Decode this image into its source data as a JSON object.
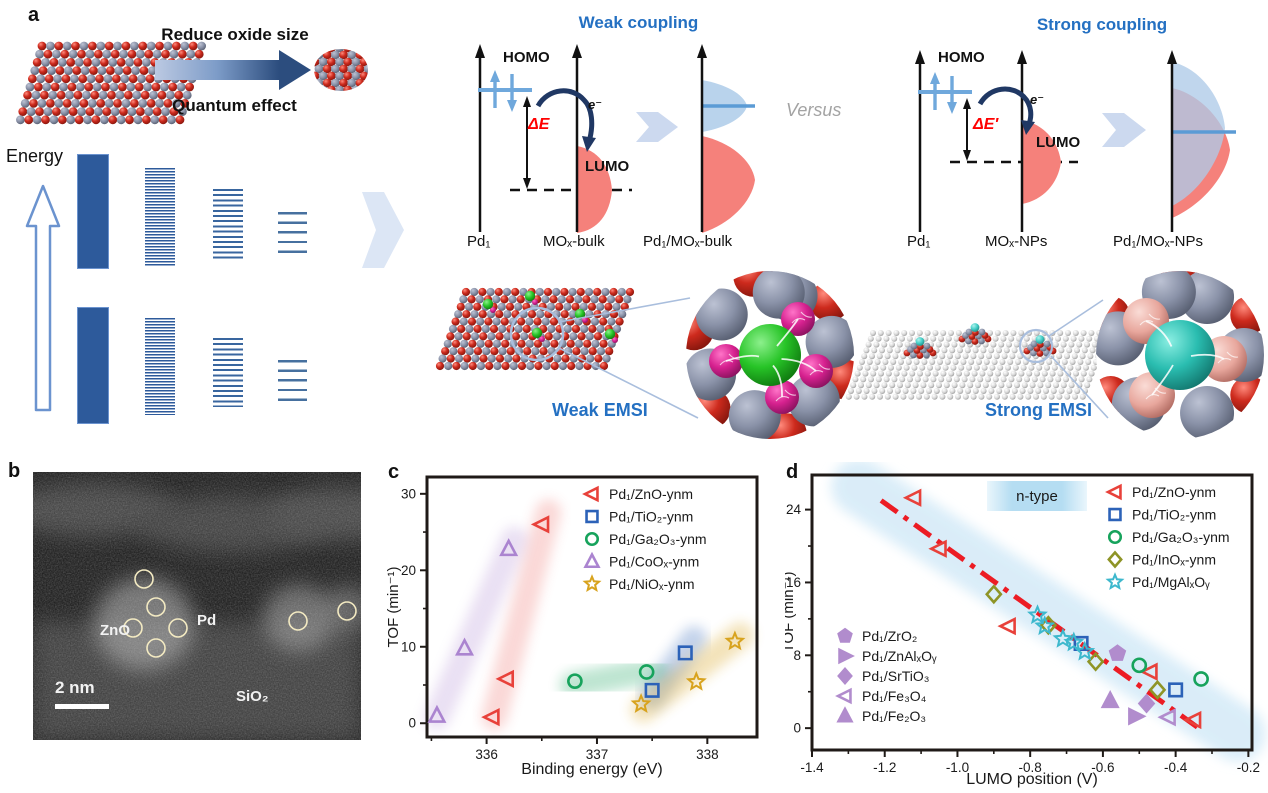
{
  "figure": {
    "panel_labels": {
      "a": "a",
      "b": "b",
      "c": "c",
      "d": "d"
    }
  },
  "panel_a": {
    "reduce_oxide_label": "Reduce oxide size",
    "quantum_effect_label": "Quantum effect",
    "energy_axis_label": "Energy",
    "versus_label": "Versus",
    "weak": {
      "title": "Weak coupling",
      "homo_label": "HOMO",
      "lumo_label": "LUMO",
      "delta_e_label": "ΔE",
      "electron_label": "e⁻",
      "axis1_label": "Pd₁",
      "axis2_label": "MOₓ-bulk",
      "axis3_label": "Pd₁/MOₓ-bulk",
      "emsi_label": "Weak EMSI"
    },
    "strong": {
      "title": "Strong coupling",
      "homo_label": "HOMO",
      "lumo_label": "LUMO",
      "delta_e_label": "ΔE′",
      "electron_label": "e⁻",
      "axis1_label": "Pd₁",
      "axis2_label": "MOₓ-NPs",
      "axis3_label": "Pd₁/MOₓ-NPs",
      "emsi_label": "Strong EMSI"
    },
    "colors": {
      "accent_blue": "#2470c2",
      "delta_e_red": "#ff0000",
      "homo_level_blue": "#6fa8dc",
      "lumo_peak_red": "#f5817b",
      "homo_peak_blue": "#aecbe8",
      "electron_arrow_navy": "#203864",
      "energy_bar_blue": "#2d5a9b",
      "block_arrow_blue": "#d9e3f4",
      "versus_gray": "#a3a3a3"
    }
  },
  "panel_b": {
    "zno_label": "ZnO",
    "pd_label": "Pd",
    "sio2_label": "SiO₂",
    "scale_bar_label": "2 nm",
    "marker_circle_color": "#f3eac2"
  },
  "chart_data": [
    {
      "id": "c",
      "type": "scatter",
      "xlabel": "Binding energy (eV)",
      "ylabel": "TOF (min⁻¹)",
      "xlim": [
        335.46,
        338.45
      ],
      "ylim": [
        -1.8,
        32.2
      ],
      "xticks": {
        "values": [
          336,
          337,
          338
        ],
        "labels": [
          "336",
          "337",
          "338"
        ]
      },
      "xminor": [
        335.5,
        336.5,
        337.5
      ],
      "yticks": {
        "values": [
          0,
          10,
          20,
          30
        ],
        "labels": [
          "0",
          "10",
          "20",
          "30"
        ]
      },
      "yminor": [
        5,
        15,
        25
      ],
      "grid": false,
      "legend_position": "top-right",
      "series": [
        {
          "name": "Pd₁/ZnO-ynm",
          "marker": "triangle-left",
          "color": "#e8413a",
          "band": [
            [
              336.07,
              0.8
            ],
            [
              336.56,
              27.6
            ]
          ],
          "band_opacity": 0.2,
          "points": [
            [
              336.05,
              0.8
            ],
            [
              336.18,
              5.8
            ],
            [
              336.5,
              26.0
            ]
          ]
        },
        {
          "name": "Pd₁/TiO₂-ynm",
          "marker": "square",
          "color": "#2c62b8",
          "band": [
            [
              337.5,
              3.6
            ],
            [
              337.88,
              11.0
            ]
          ],
          "band_opacity": 0.28,
          "points": [
            [
              337.5,
              4.3
            ],
            [
              337.8,
              9.2
            ]
          ]
        },
        {
          "name": "Pd₁/Ga₂O₃-ynm",
          "marker": "circle",
          "color": "#17a35c",
          "band": [
            [
              336.78,
              5.0
            ],
            [
              337.52,
              7.0
            ]
          ],
          "band_opacity": 0.28,
          "points": [
            [
              336.8,
              5.5
            ],
            [
              337.45,
              6.7
            ]
          ]
        },
        {
          "name": "Pd₁/CoOₓ-ynm",
          "marker": "triangle-up",
          "color": "#ab84d0",
          "band": [
            [
              335.55,
              0.8
            ],
            [
              336.25,
              24.0
            ]
          ],
          "band_opacity": 0.25,
          "points": [
            [
              335.55,
              1.0
            ],
            [
              335.8,
              9.8
            ],
            [
              336.2,
              22.8
            ]
          ]
        },
        {
          "name": "Pd₁/NiOₓ-ynm",
          "marker": "star",
          "color": "#d8a31e",
          "band": [
            [
              337.42,
              1.8
            ],
            [
              338.3,
              11.5
            ]
          ],
          "band_opacity": 0.3,
          "points": [
            [
              337.4,
              2.5
            ],
            [
              337.9,
              5.4
            ],
            [
              338.25,
              10.7
            ]
          ]
        }
      ]
    },
    {
      "id": "d",
      "type": "scatter",
      "xlabel": "LUMO position (V)",
      "ylabel": "TOF (min⁻¹)",
      "xlim": [
        -1.4,
        -0.19
      ],
      "ylim": [
        -2.4,
        27.8
      ],
      "xticks": {
        "values": [
          -1.4,
          -1.2,
          -1.0,
          -0.8,
          -0.6,
          -0.4,
          -0.2
        ],
        "labels": [
          "-1.4",
          "-1.2",
          "-1.0",
          "-0.8",
          "-0.6",
          "-0.4",
          "-0.2"
        ]
      },
      "xminor": [
        -1.3,
        -1.1,
        -0.9,
        -0.7,
        -0.5,
        -0.3
      ],
      "yticks": {
        "values": [
          0,
          8,
          16,
          24
        ],
        "labels": [
          "0",
          "8",
          "16",
          "24"
        ]
      },
      "yminor": [
        4,
        12,
        20
      ],
      "grid": false,
      "annotation": {
        "label": "n-type"
      },
      "band": {
        "from": [
          -1.27,
          26.5
        ],
        "to": [
          -0.23,
          -0.6
        ],
        "color": "#d6ebf8"
      },
      "trend": {
        "from": [
          -1.21,
          25.0
        ],
        "to": [
          -0.34,
          0.1
        ],
        "color": "#ec1c24",
        "style": "dash-dot"
      },
      "series": [
        {
          "name": "Pd₁/ZnO-ynm",
          "marker": "triangle-left",
          "color": "#e8413a",
          "legend_group": 1,
          "points": [
            [
              -1.12,
              25.3
            ],
            [
              -1.05,
              19.7
            ],
            [
              -0.86,
              11.2
            ],
            [
              -0.47,
              6.2
            ],
            [
              -0.35,
              0.9
            ]
          ]
        },
        {
          "name": "Pd₁/TiO₂-ynm",
          "marker": "square",
          "color": "#2c62b8",
          "legend_group": 1,
          "points": [
            [
              -0.66,
              9.3
            ],
            [
              -0.4,
              4.2
            ]
          ]
        },
        {
          "name": "Pd₁/Ga₂O₃-ynm",
          "marker": "circle",
          "color": "#17a35c",
          "legend_group": 1,
          "points": [
            [
              -0.5,
              6.9
            ],
            [
              -0.33,
              5.4
            ]
          ]
        },
        {
          "name": "Pd₁/InOₓ-ynm",
          "marker": "diamond",
          "color": "#8e9426",
          "legend_group": 1,
          "points": [
            [
              -0.9,
              14.7
            ],
            [
              -0.75,
              11.3
            ],
            [
              -0.62,
              7.3
            ],
            [
              -0.45,
              4.2
            ]
          ]
        },
        {
          "name": "Pd₁/MgAlₓOᵧ",
          "marker": "star",
          "color": "#3db8cd",
          "legend_group": 1,
          "points": [
            [
              -0.78,
              12.4
            ],
            [
              -0.76,
              11.2
            ],
            [
              -0.71,
              9.8
            ],
            [
              -0.68,
              9.4
            ],
            [
              -0.65,
              8.4
            ]
          ]
        },
        {
          "name": "Pd₁/ZrO₂",
          "marker": "pentagon",
          "color": "#b18ccd",
          "fill": "solid",
          "legend_group": 2,
          "points": [
            [
              -0.56,
              8.2
            ]
          ]
        },
        {
          "name": "Pd₁/ZnAlₓOᵧ",
          "marker": "triangle-right",
          "color": "#b18ccd",
          "fill": "solid",
          "legend_group": 2,
          "points": [
            [
              -0.51,
              1.3
            ]
          ]
        },
        {
          "name": "Pd₁/SrTiO₃",
          "marker": "diamond",
          "color": "#b18ccd",
          "fill": "solid",
          "legend_group": 2,
          "points": [
            [
              -0.48,
              2.7
            ]
          ]
        },
        {
          "name": "Pd₁/Fe₃O₄",
          "marker": "triangle-left",
          "color": "#b18ccd",
          "legend_group": 2,
          "points": [
            [
              -0.42,
              1.2
            ]
          ]
        },
        {
          "name": "Pd₁/Fe₂O₃",
          "marker": "triangle-up",
          "color": "#b18ccd",
          "fill": "solid",
          "legend_group": 2,
          "points": [
            [
              -0.58,
              3.0
            ]
          ]
        }
      ]
    }
  ]
}
